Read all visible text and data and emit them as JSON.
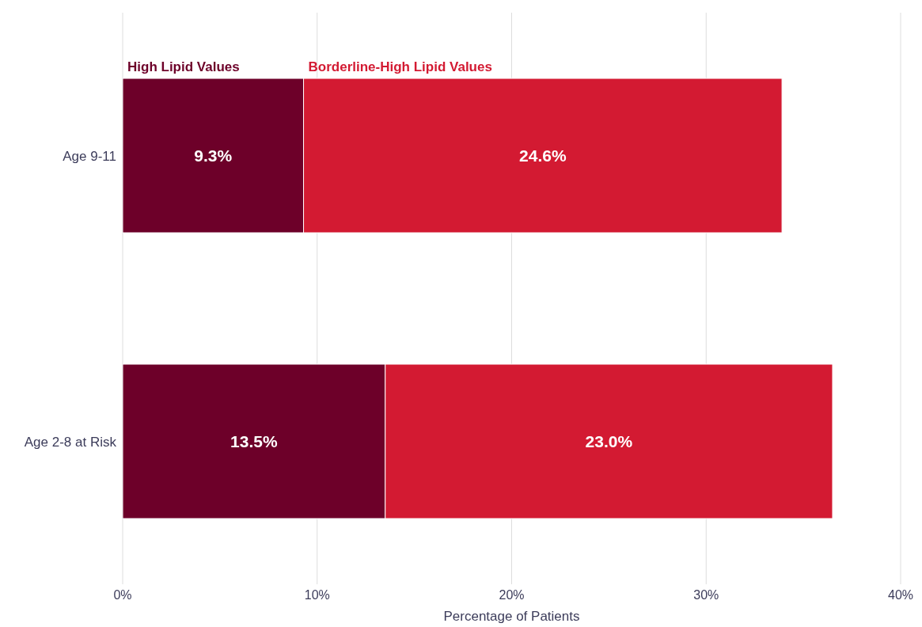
{
  "chart_data": {
    "type": "bar",
    "orientation": "horizontal",
    "stacked": true,
    "categories": [
      "Age 9-11",
      "Age 2-8 at Risk"
    ],
    "series": [
      {
        "name": "High Lipid Values",
        "color": "#6d0029",
        "values": [
          9.3,
          13.5
        ],
        "value_labels": [
          "9.3%",
          "13.5%"
        ]
      },
      {
        "name": "Borderline-High Lipid Values",
        "color": "#d31a32",
        "values": [
          24.6,
          23.0
        ],
        "value_labels": [
          "24.6%",
          "23.0%"
        ]
      }
    ],
    "xlim": [
      0,
      40
    ],
    "xticks": [
      {
        "value": 0,
        "label": "0%"
      },
      {
        "value": 10,
        "label": "10%"
      },
      {
        "value": 20,
        "label": "20%"
      },
      {
        "value": 30,
        "label": "30%"
      },
      {
        "value": 40,
        "label": "40%"
      }
    ],
    "xlabel": "Percentage of Patients",
    "grid": "x"
  }
}
